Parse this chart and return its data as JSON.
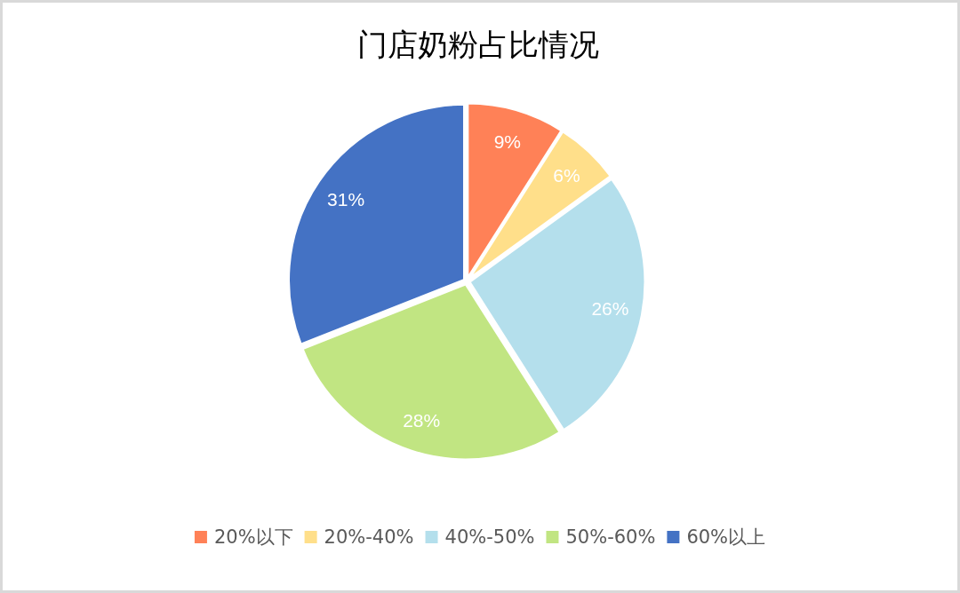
{
  "chart_data": {
    "type": "pie",
    "title": "门店奶粉占比情况",
    "categories": [
      "20%以下",
      "20%-40%",
      "40%-50%",
      "50%-60%",
      "60%以上"
    ],
    "values": [
      9,
      6,
      26,
      28,
      31
    ],
    "value_labels": [
      "9%",
      "6%",
      "26%",
      "28%",
      "31%"
    ],
    "colors": [
      "#ff8157",
      "#ffdf8a",
      "#b4dfec",
      "#c1e582",
      "#4472c4"
    ],
    "legend": "bottom"
  }
}
